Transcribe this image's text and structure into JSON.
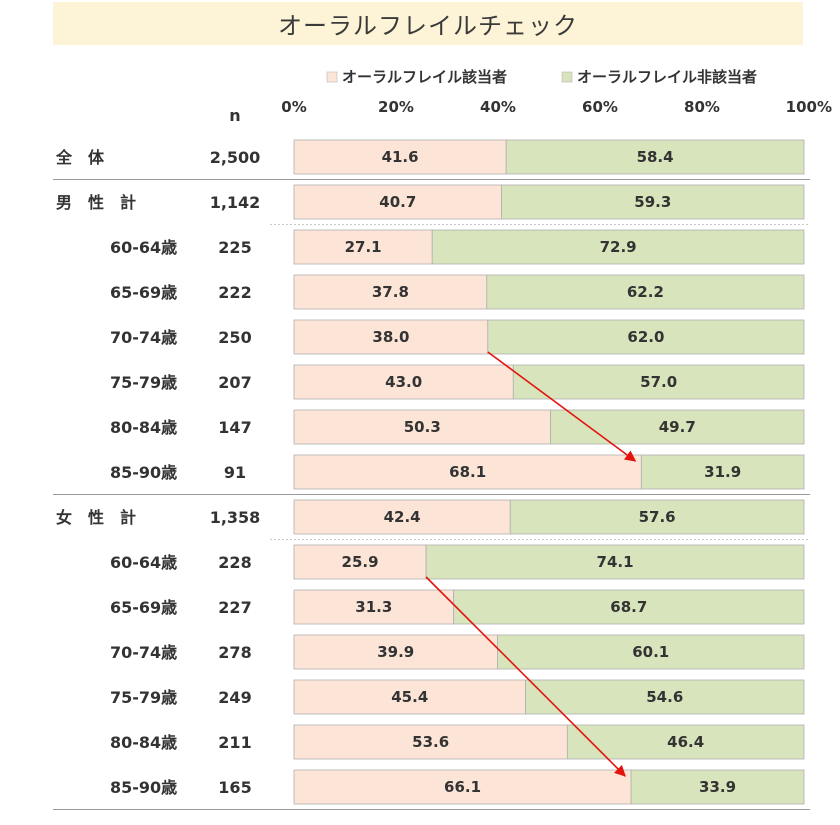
{
  "chart_data": {
    "type": "bar",
    "orientation": "horizontal",
    "stacked": true,
    "title": "オーラルフレイルチェック",
    "n_header": "n",
    "xlim": [
      0,
      100
    ],
    "x_ticks": [
      "0%",
      "20%",
      "40%",
      "60%",
      "80%",
      "100%"
    ],
    "legend_position": "top",
    "colors": {
      "frail": "#fce5d6",
      "nonfrail": "#d8e4bc",
      "border": "#b0b0b0",
      "arrow": "#e3140f",
      "title_bg": "#fdf3d7"
    },
    "series": [
      {
        "name": "オーラルフレイル該当者",
        "color": "#fce5d6"
      },
      {
        "name": "オーラルフレイル非該当者",
        "color": "#d8e4bc"
      }
    ],
    "groups": [
      {
        "rows": [
          {
            "label": "全　体",
            "n": "2,500",
            "frail": 41.6,
            "nonfrail": 58.4,
            "indent": false
          }
        ]
      },
      {
        "rows": [
          {
            "label": "男　性　計",
            "n": "1,142",
            "frail": 40.7,
            "nonfrail": 59.3,
            "indent": false
          },
          {
            "label": "60-64歳",
            "n": "225",
            "frail": 27.1,
            "nonfrail": 72.9,
            "indent": true
          },
          {
            "label": "65-69歳",
            "n": "222",
            "frail": 37.8,
            "nonfrail": 62.2,
            "indent": true
          },
          {
            "label": "70-74歳",
            "n": "250",
            "frail": 38.0,
            "nonfrail": 62.0,
            "indent": true
          },
          {
            "label": "75-79歳",
            "n": "207",
            "frail": 43.0,
            "nonfrail": 57.0,
            "indent": true
          },
          {
            "label": "80-84歳",
            "n": "147",
            "frail": 50.3,
            "nonfrail": 49.7,
            "indent": true
          },
          {
            "label": "85-90歳",
            "n": "91",
            "frail": 68.1,
            "nonfrail": 31.9,
            "indent": true
          }
        ]
      },
      {
        "rows": [
          {
            "label": "女　性　計",
            "n": "1,358",
            "frail": 42.4,
            "nonfrail": 57.6,
            "indent": false
          },
          {
            "label": "60-64歳",
            "n": "228",
            "frail": 25.9,
            "nonfrail": 74.1,
            "indent": true
          },
          {
            "label": "65-69歳",
            "n": "227",
            "frail": 31.3,
            "nonfrail": 68.7,
            "indent": true
          },
          {
            "label": "70-74歳",
            "n": "278",
            "frail": 39.9,
            "nonfrail": 60.1,
            "indent": true
          },
          {
            "label": "75-79歳",
            "n": "249",
            "frail": 45.4,
            "nonfrail": 54.6,
            "indent": true
          },
          {
            "label": "80-84歳",
            "n": "211",
            "frail": 53.6,
            "nonfrail": 46.4,
            "indent": true
          },
          {
            "label": "85-90歳",
            "n": "165",
            "frail": 66.1,
            "nonfrail": 33.9,
            "indent": true
          }
        ]
      }
    ],
    "annotations": [
      {
        "type": "arrow",
        "from": {
          "row": "男性 70-74歳",
          "value": 38.0
        },
        "to": {
          "row": "男性 85-90歳",
          "value": 68.1
        }
      },
      {
        "type": "arrow",
        "from": {
          "row": "女性 60-64歳",
          "value": 25.9
        },
        "to": {
          "row": "女性 85-90歳",
          "value": 66.1
        }
      }
    ]
  }
}
